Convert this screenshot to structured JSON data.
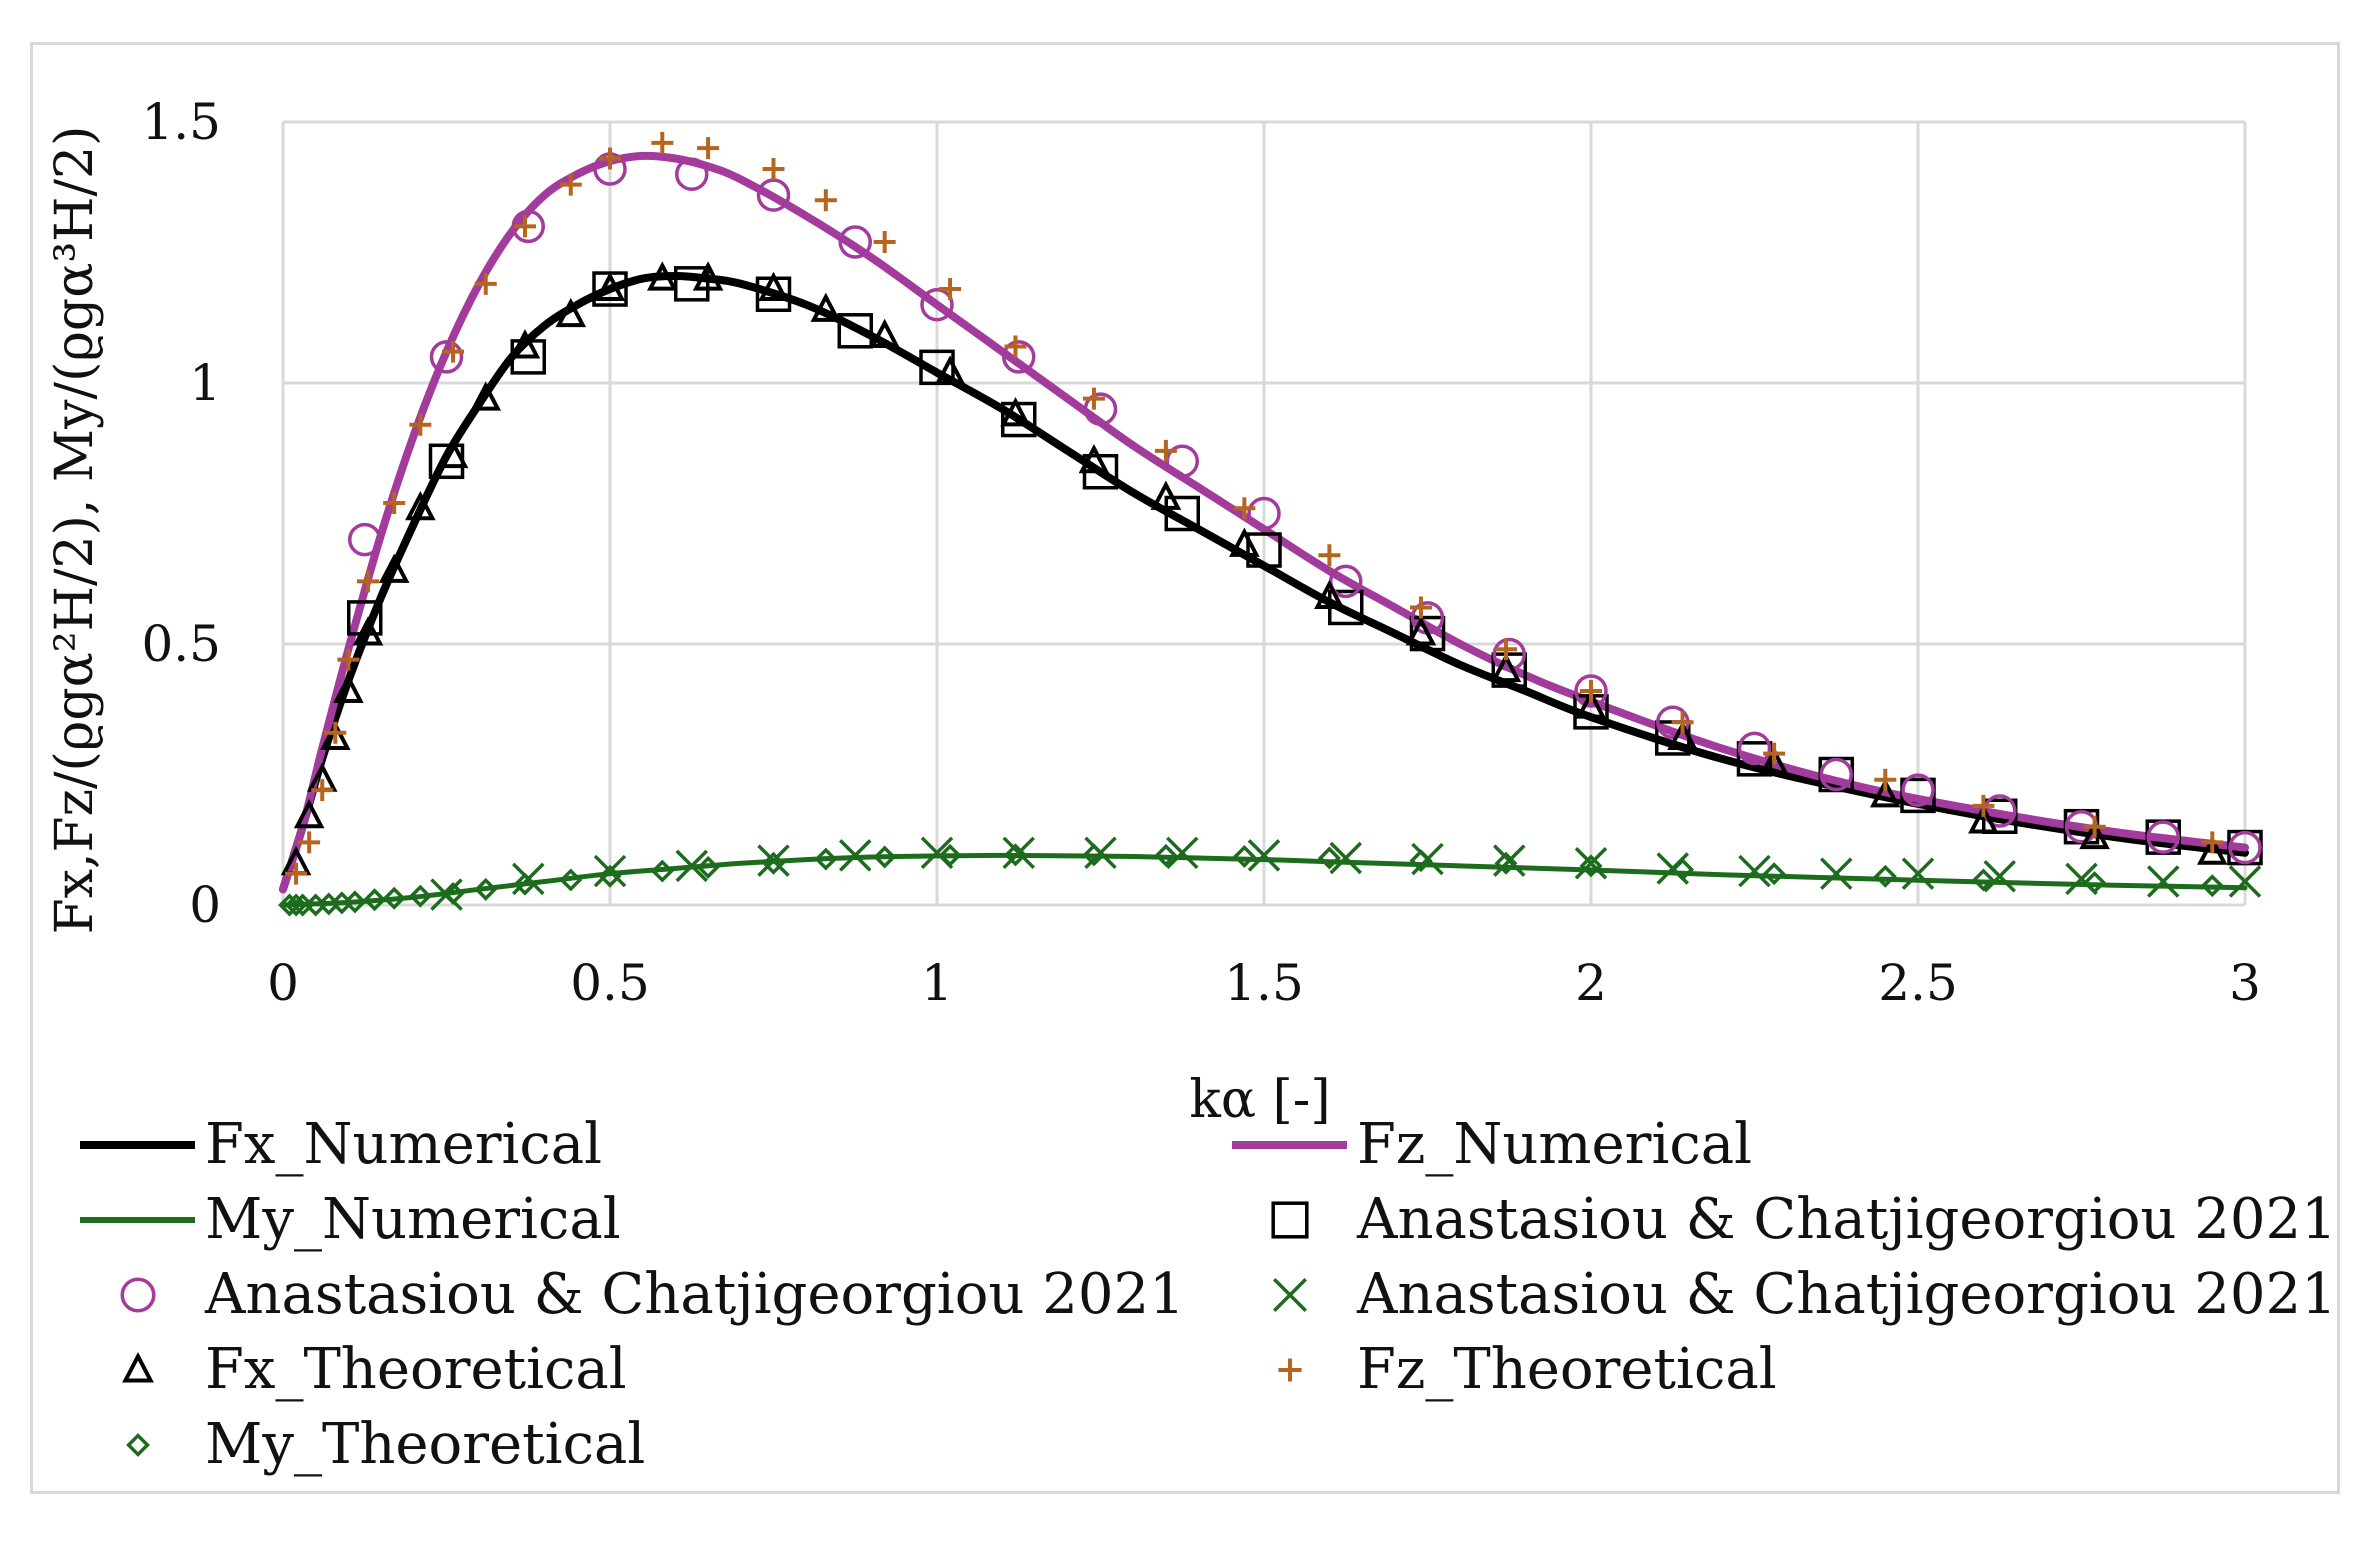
{
  "chart_data": {
    "type": "line",
    "xlabel": "kα [-]",
    "ylabel": "Fx,Fz/(ϱgα²H/2), My/(ϱgα³H/2)",
    "xlim": [
      0,
      3
    ],
    "ylim": [
      0,
      1.5
    ],
    "xticks": [
      "0",
      "0.5",
      "1",
      "1.5",
      "2",
      "2.5",
      "3"
    ],
    "yticks": [
      "0",
      "0.5",
      "1",
      "1.5"
    ],
    "grid": true,
    "legend_position": "bottom",
    "series": [
      {
        "name": "Fx_Numerical",
        "kind": "line",
        "color": "#000000",
        "x": [
          0.0,
          0.03,
          0.06,
          0.1,
          0.15,
          0.2,
          0.25,
          0.3,
          0.35,
          0.4,
          0.45,
          0.5,
          0.55,
          0.6,
          0.65,
          0.7,
          0.8,
          0.9,
          1.0,
          1.1,
          1.2,
          1.3,
          1.4,
          1.5,
          1.6,
          1.7,
          1.8,
          1.9,
          2.0,
          2.2,
          2.4,
          2.6,
          2.8,
          3.0
        ],
        "y": [
          0.03,
          0.15,
          0.28,
          0.43,
          0.59,
          0.73,
          0.86,
          0.96,
          1.05,
          1.11,
          1.15,
          1.18,
          1.2,
          1.205,
          1.2,
          1.19,
          1.15,
          1.09,
          1.02,
          0.95,
          0.87,
          0.79,
          0.72,
          0.65,
          0.58,
          0.52,
          0.46,
          0.41,
          0.36,
          0.28,
          0.22,
          0.17,
          0.13,
          0.1
        ]
      },
      {
        "name": "Fz_Numerical",
        "kind": "line",
        "color": "#a23b9c",
        "x": [
          0.0,
          0.03,
          0.06,
          0.1,
          0.15,
          0.2,
          0.25,
          0.3,
          0.35,
          0.4,
          0.45,
          0.5,
          0.55,
          0.6,
          0.65,
          0.7,
          0.8,
          0.9,
          1.0,
          1.1,
          1.2,
          1.3,
          1.4,
          1.5,
          1.6,
          1.7,
          1.8,
          1.9,
          2.0,
          2.2,
          2.4,
          2.6,
          2.8,
          3.0
        ],
        "y": [
          0.03,
          0.15,
          0.3,
          0.49,
          0.71,
          0.9,
          1.06,
          1.19,
          1.29,
          1.36,
          1.4,
          1.425,
          1.435,
          1.43,
          1.415,
          1.39,
          1.32,
          1.24,
          1.15,
          1.06,
          0.97,
          0.88,
          0.8,
          0.72,
          0.64,
          0.57,
          0.5,
          0.44,
          0.39,
          0.3,
          0.23,
          0.18,
          0.14,
          0.11
        ]
      },
      {
        "name": "My_Numerical",
        "kind": "line",
        "color": "#1d6b1d",
        "x": [
          0.0,
          0.1,
          0.2,
          0.3,
          0.4,
          0.5,
          0.6,
          0.7,
          0.8,
          0.9,
          1.0,
          1.1,
          1.2,
          1.3,
          1.4,
          1.5,
          1.6,
          1.8,
          2.0,
          2.2,
          2.4,
          2.6,
          2.8,
          3.0
        ],
        "y": [
          0.0,
          0.005,
          0.015,
          0.03,
          0.045,
          0.06,
          0.07,
          0.08,
          0.087,
          0.092,
          0.094,
          0.095,
          0.094,
          0.093,
          0.09,
          0.087,
          0.083,
          0.075,
          0.067,
          0.058,
          0.051,
          0.044,
          0.038,
          0.033
        ]
      },
      {
        "name": "Anastasiou & Chatjigeorgiou 2021",
        "kind": "square",
        "color": "#000000",
        "x": [
          0.125,
          0.25,
          0.375,
          0.5,
          0.625,
          0.75,
          0.875,
          1.0,
          1.125,
          1.25,
          1.375,
          1.5,
          1.625,
          1.75,
          1.875,
          2.0,
          2.125,
          2.25,
          2.375,
          2.5,
          2.625,
          2.75,
          2.875,
          3.0
        ],
        "y": [
          0.55,
          0.85,
          1.05,
          1.18,
          1.19,
          1.17,
          1.1,
          1.03,
          0.93,
          0.83,
          0.75,
          0.68,
          0.57,
          0.52,
          0.45,
          0.37,
          0.32,
          0.28,
          0.25,
          0.21,
          0.17,
          0.15,
          0.13,
          0.11
        ]
      },
      {
        "name": "Anastasiou & Chatjigeorgiou 2021",
        "kind": "circle",
        "color": "#a23b9c",
        "x": [
          0.125,
          0.25,
          0.375,
          0.5,
          0.625,
          0.75,
          0.875,
          1.0,
          1.125,
          1.25,
          1.375,
          1.5,
          1.625,
          1.75,
          1.875,
          2.0,
          2.125,
          2.25,
          2.375,
          2.5,
          2.625,
          2.75,
          2.875,
          3.0
        ],
        "y": [
          0.7,
          1.05,
          1.3,
          1.41,
          1.4,
          1.36,
          1.27,
          1.15,
          1.05,
          0.95,
          0.85,
          0.75,
          0.62,
          0.55,
          0.48,
          0.41,
          0.35,
          0.3,
          0.25,
          0.22,
          0.18,
          0.15,
          0.13,
          0.11
        ]
      },
      {
        "name": "Anastasiou & Chatjigeorgiou 2021",
        "kind": "cross",
        "color": "#1d6b1d",
        "x": [
          0.25,
          0.375,
          0.5,
          0.625,
          0.75,
          0.875,
          1.0,
          1.125,
          1.25,
          1.375,
          1.5,
          1.625,
          1.75,
          1.875,
          2.0,
          2.125,
          2.25,
          2.375,
          2.5,
          2.625,
          2.75,
          2.875,
          3.0
        ],
        "y": [
          0.02,
          0.05,
          0.065,
          0.075,
          0.085,
          0.095,
          0.1,
          0.1,
          0.1,
          0.1,
          0.095,
          0.09,
          0.088,
          0.085,
          0.08,
          0.07,
          0.065,
          0.06,
          0.06,
          0.055,
          0.05,
          0.045,
          0.045
        ]
      },
      {
        "name": "Fx_Theoretical",
        "kind": "triangle",
        "color": "#000000",
        "x": [
          0.02,
          0.04,
          0.06,
          0.08,
          0.1,
          0.13,
          0.17,
          0.21,
          0.26,
          0.31,
          0.37,
          0.44,
          0.5,
          0.58,
          0.65,
          0.75,
          0.83,
          0.92,
          1.02,
          1.12,
          1.24,
          1.35,
          1.47,
          1.6,
          1.74,
          1.87,
          2.0,
          2.14,
          2.28,
          2.45,
          2.6,
          2.77,
          2.95
        ],
        "y": [
          0.08,
          0.17,
          0.24,
          0.32,
          0.41,
          0.52,
          0.64,
          0.76,
          0.86,
          0.97,
          1.07,
          1.13,
          1.18,
          1.2,
          1.2,
          1.18,
          1.14,
          1.09,
          1.02,
          0.94,
          0.85,
          0.78,
          0.69,
          0.59,
          0.52,
          0.45,
          0.38,
          0.32,
          0.27,
          0.21,
          0.16,
          0.13,
          0.1
        ]
      },
      {
        "name": "Fz_Theoretical",
        "kind": "plus",
        "color": "#b5651d",
        "x": [
          0.02,
          0.04,
          0.06,
          0.08,
          0.1,
          0.13,
          0.17,
          0.21,
          0.26,
          0.31,
          0.37,
          0.44,
          0.5,
          0.58,
          0.65,
          0.75,
          0.83,
          0.92,
          1.02,
          1.12,
          1.24,
          1.35,
          1.47,
          1.6,
          1.74,
          1.87,
          2.0,
          2.14,
          2.28,
          2.45,
          2.6,
          2.77,
          2.95
        ],
        "y": [
          0.06,
          0.12,
          0.22,
          0.33,
          0.47,
          0.62,
          0.77,
          0.92,
          1.06,
          1.19,
          1.3,
          1.38,
          1.43,
          1.46,
          1.45,
          1.41,
          1.35,
          1.27,
          1.18,
          1.07,
          0.97,
          0.87,
          0.76,
          0.67,
          0.57,
          0.49,
          0.41,
          0.35,
          0.29,
          0.24,
          0.19,
          0.15,
          0.12
        ]
      },
      {
        "name": "My_Theoretical",
        "kind": "diamond",
        "color": "#1d6b1d",
        "x": [
          0.01,
          0.02,
          0.03,
          0.05,
          0.07,
          0.09,
          0.11,
          0.14,
          0.17,
          0.21,
          0.26,
          0.31,
          0.37,
          0.44,
          0.5,
          0.58,
          0.65,
          0.75,
          0.83,
          0.92,
          1.02,
          1.12,
          1.24,
          1.35,
          1.47,
          1.6,
          1.74,
          1.87,
          2.0,
          2.14,
          2.28,
          2.45,
          2.6,
          2.77,
          2.95
        ],
        "y": [
          0.0,
          0.0,
          0.0,
          0.0,
          0.002,
          0.004,
          0.006,
          0.01,
          0.013,
          0.017,
          0.022,
          0.03,
          0.04,
          0.048,
          0.055,
          0.065,
          0.072,
          0.08,
          0.088,
          0.092,
          0.095,
          0.096,
          0.096,
          0.095,
          0.093,
          0.09,
          0.085,
          0.08,
          0.075,
          0.068,
          0.06,
          0.055,
          0.048,
          0.043,
          0.037
        ]
      }
    ]
  }
}
